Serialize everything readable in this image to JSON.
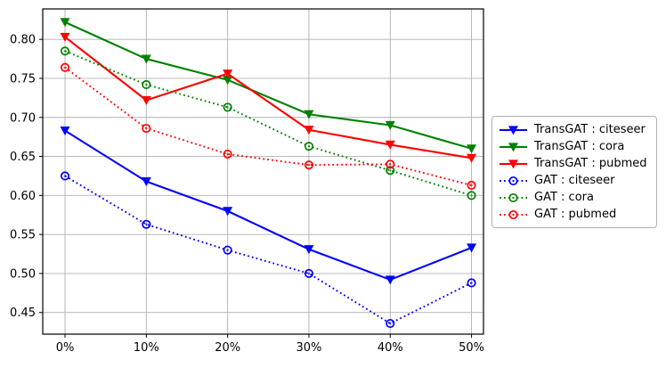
{
  "figure": {
    "background": "#ffffff"
  },
  "chart_data": {
    "type": "line",
    "title": "",
    "xlabel": "",
    "ylabel": "",
    "grid": true,
    "grid_color": "#b0b0b0",
    "axis_color": "#000000",
    "tick_label_color": "#000000",
    "legend_position": "center-right-outside",
    "x_percent": [
      0,
      10,
      20,
      30,
      40,
      50
    ],
    "x_tick_labels": [
      "0%",
      "10%",
      "20%",
      "30%",
      "40%",
      "50%"
    ],
    "y_ticks": [
      0.45,
      0.5,
      0.55,
      0.6,
      0.65,
      0.7,
      0.75,
      0.8
    ],
    "y_tick_labels": [
      "0.45",
      "0.50",
      "0.55",
      "0.60",
      "0.65",
      "0.70",
      "0.75",
      "0.80"
    ],
    "xlim_percent": [
      -2.74,
      51.47
    ],
    "ylim": [
      0.4223,
      0.839
    ],
    "series": [
      {
        "name": "TransGAT : citeseer",
        "color": "#0000ff",
        "line_style": "solid",
        "marker": "triangle-down",
        "values": [
          0.683,
          0.618,
          0.58,
          0.531,
          0.492,
          0.533
        ]
      },
      {
        "name": "TransGAT : cora",
        "color": "#008000",
        "line_style": "solid",
        "marker": "triangle-down",
        "values": [
          0.822,
          0.775,
          0.748,
          0.704,
          0.69,
          0.66
        ]
      },
      {
        "name": "TransGAT : pubmed",
        "color": "#ff0000",
        "line_style": "solid",
        "marker": "triangle-down",
        "values": [
          0.803,
          0.722,
          0.756,
          0.684,
          0.665,
          0.648
        ]
      },
      {
        "name": "GAT : citeseer",
        "color": "#0000ff",
        "line_style": "dotted",
        "marker": "circle-open",
        "values": [
          0.625,
          0.563,
          0.53,
          0.5,
          0.436,
          0.488
        ]
      },
      {
        "name": "GAT : cora",
        "color": "#008000",
        "line_style": "dotted",
        "marker": "circle-open",
        "values": [
          0.785,
          0.742,
          0.713,
          0.663,
          0.632,
          0.6
        ]
      },
      {
        "name": "GAT : pubmed",
        "color": "#ff0000",
        "line_style": "dotted",
        "marker": "circle-open",
        "values": [
          0.764,
          0.686,
          0.653,
          0.639,
          0.64,
          0.613
        ]
      }
    ]
  }
}
